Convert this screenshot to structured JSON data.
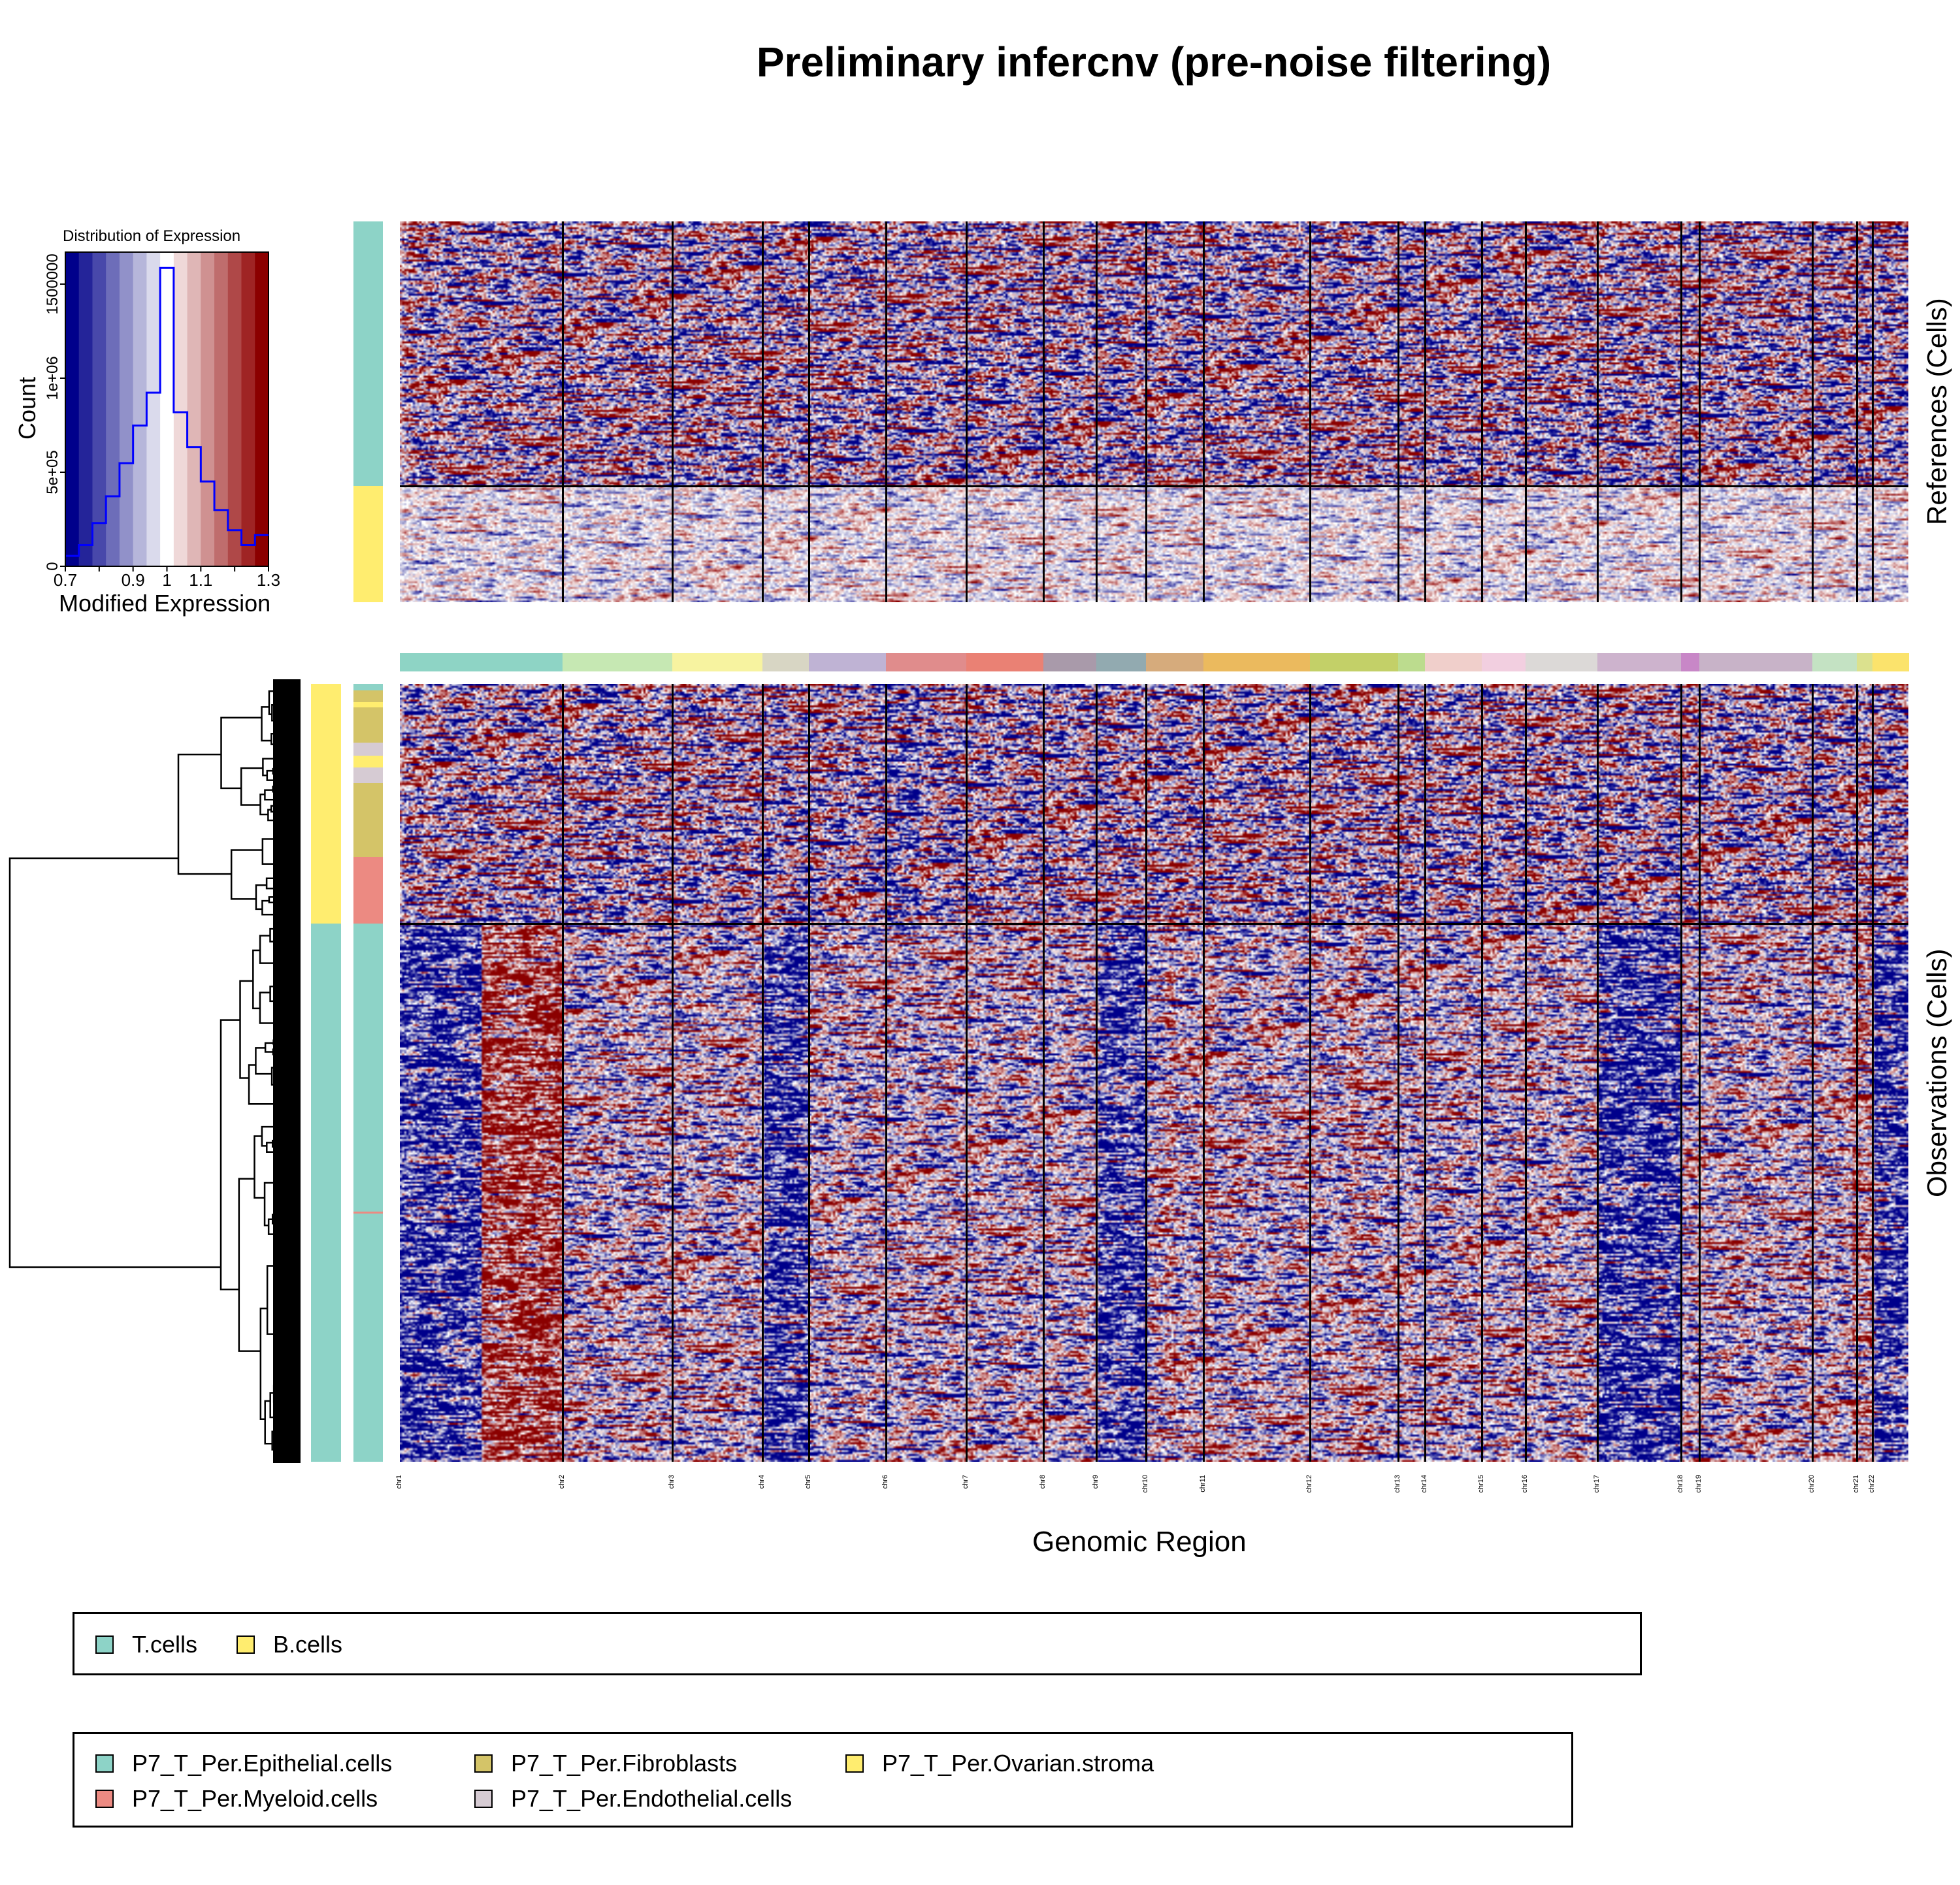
{
  "title": "Preliminary infercnv (pre-noise filtering)",
  "chart_data": [
    {
      "type": "bar",
      "title": "Distribution of Expression",
      "xlabel": "Modified Expression",
      "ylabel": "Count",
      "xlim": [
        0.7,
        1.3
      ],
      "x_ticks": [
        "0.7",
        "0.9",
        "1",
        "1.1",
        "1.3"
      ],
      "y_ticks": [
        "0",
        "5e+05",
        "1e+06",
        "1500000"
      ],
      "bin_edges": [
        0.7,
        0.74,
        0.78,
        0.82,
        0.86,
        0.9,
        0.94,
        0.98,
        1.02,
        1.06,
        1.1,
        1.14,
        1.18,
        1.22,
        1.26,
        1.3
      ],
      "values": [
        55000,
        113000,
        230000,
        372000,
        548000,
        748000,
        923000,
        1586000,
        819000,
        633000,
        451000,
        299000,
        192000,
        113000,
        166000
      ],
      "line_color": "#0000FF",
      "palette": [
        "#00008B",
        "#242499",
        "#4848AA",
        "#6D6DB9",
        "#9191C9",
        "#B6B6DA",
        "#DADAEC",
        "#FFFFFF",
        "#EFD8D8",
        "#DFB6B6",
        "#CF9191",
        "#BF6D6D",
        "#AF4848",
        "#9F2424",
        "#8B0000"
      ]
    },
    {
      "type": "heatmap",
      "xlabel": "Genomic Region",
      "ref_label": "References (Cells)",
      "obs_label": "Observations (Cells)",
      "chromosomes": [
        {
          "name": "chr1",
          "color": "#8ED4C5"
        },
        {
          "name": "chr2",
          "color": "#C6E8B3"
        },
        {
          "name": "chr3",
          "color": "#F7F3A0"
        },
        {
          "name": "chr4",
          "color": "#D8D6C4"
        },
        {
          "name": "chr5",
          "color": "#BFB3D4"
        },
        {
          "name": "chr6",
          "color": "#E08C8C"
        },
        {
          "name": "chr7",
          "color": "#EA8174"
        },
        {
          "name": "chr8",
          "color": "#A99AAA"
        },
        {
          "name": "chr9",
          "color": "#92AAB0"
        },
        {
          "name": "chr10",
          "color": "#D6AB7C"
        },
        {
          "name": "chr11",
          "color": "#EBBA5E"
        },
        {
          "name": "chr12",
          "color": "#C3D068"
        },
        {
          "name": "chr13",
          "color": "#BCDC8E"
        },
        {
          "name": "chr14",
          "color": "#F0CFCB"
        },
        {
          "name": "chr15",
          "color": "#F2CFE0"
        },
        {
          "name": "chr16",
          "color": "#DCD9D7"
        },
        {
          "name": "chr17",
          "color": "#CDB3CD"
        },
        {
          "name": "chr18",
          "color": "#C887C7"
        },
        {
          "name": "chr19",
          "color": "#C8B3C8"
        },
        {
          "name": "chr20",
          "color": "#C4E2C3"
        },
        {
          "name": "chr21",
          "color": "#DBE18E"
        },
        {
          "name": "chr22",
          "color": "#FBE36C"
        }
      ],
      "reference_groups": [
        "T.cells",
        "B.cells"
      ],
      "observation_groups": [
        "B.cells",
        "T.cells"
      ],
      "observation_tumor_cnv": {
        "chr1p": "loss",
        "chr1q": "gain",
        "chr4": "loss",
        "chr9": "loss",
        "chr17": "loss",
        "chr20": "gain",
        "chr22": "loss"
      }
    }
  ],
  "legend_groups": {
    "items": [
      {
        "label": "T.cells",
        "color": "#8DD3C7"
      },
      {
        "label": "B.cells",
        "color": "#FFED6F"
      }
    ]
  },
  "legend_celltypes": {
    "items": [
      {
        "label": "P7_T_Per.Epithelial.cells",
        "color": "#8DD3C7"
      },
      {
        "label": "P7_T_Per.Myeloid.cells",
        "color": "#EC8A82"
      },
      {
        "label": "P7_T_Per.Fibroblasts",
        "color": "#D4C468"
      },
      {
        "label": "P7_T_Per.Endothelial.cells",
        "color": "#D6CBD3"
      },
      {
        "label": "P7_T_Per.Ovarian.stroma",
        "color": "#FFED6F"
      }
    ]
  }
}
